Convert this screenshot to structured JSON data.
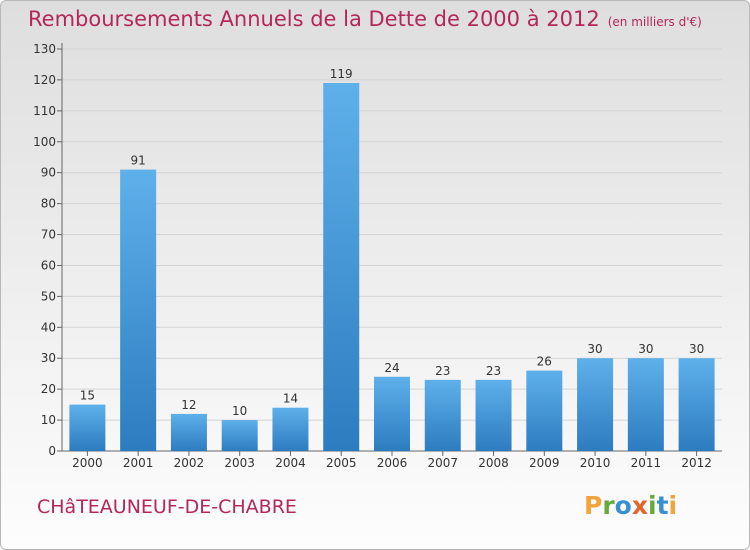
{
  "header": {
    "title": "Remboursements Annuels de la Dette de 2000 à 2012",
    "unit": "(en milliers d'€)"
  },
  "footer": {
    "town": "CHâTEAUNEUF-DE-CHABRE",
    "logo": "Proxiti"
  },
  "colors": {
    "accent": "#b5265b",
    "bar_light": "#5eb0ea",
    "bar_dark": "#2d7cc0",
    "logo_letters": [
      "#f2a43a",
      "#68a93b",
      "#3a8fd0",
      "#e2652a",
      "#68a93b",
      "#3a8fd0",
      "#f2a43a"
    ]
  },
  "chart_data": {
    "type": "bar",
    "title": "Remboursements Annuels de la Dette de 2000 à 2012",
    "subtitle": "(en milliers d'€)",
    "xlabel": "",
    "ylabel": "",
    "categories": [
      "2000",
      "2001",
      "2002",
      "2003",
      "2004",
      "2005",
      "2006",
      "2007",
      "2008",
      "2009",
      "2010",
      "2011",
      "2012"
    ],
    "values": [
      15,
      91,
      12,
      10,
      14,
      119,
      24,
      23,
      23,
      26,
      30,
      30,
      30
    ],
    "ylim": [
      0,
      130
    ],
    "yticks": [
      0,
      10,
      20,
      30,
      40,
      50,
      60,
      70,
      80,
      90,
      100,
      110,
      120,
      130
    ],
    "grid": true,
    "data_labels": true
  }
}
